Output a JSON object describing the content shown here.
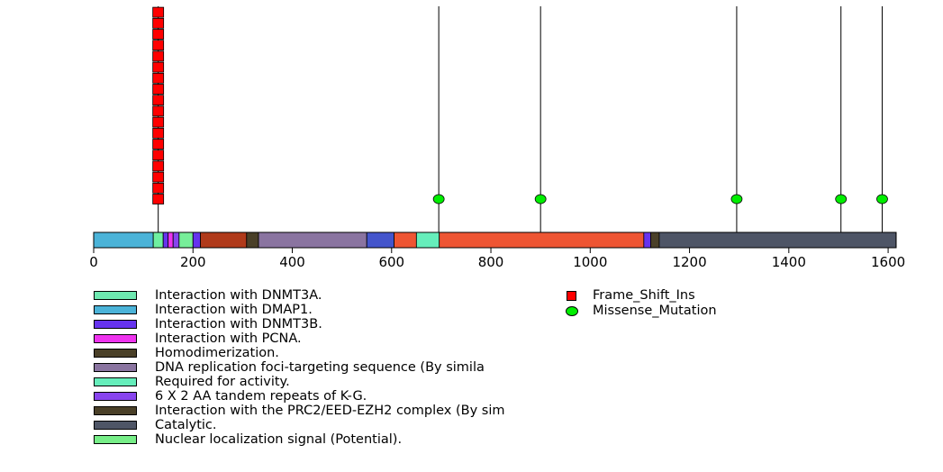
{
  "chart_data": {
    "type": "lollipop",
    "protein_length": 1616,
    "x_ticks": [
      0,
      200,
      400,
      600,
      800,
      1000,
      1200,
      1400,
      1600
    ],
    "regions": [
      {
        "start": 1,
        "end": 120,
        "color": "#4bb3d8",
        "label": "Interaction with DMAP1."
      },
      {
        "start": 121,
        "end": 140,
        "color": "#6ff0a0"
      },
      {
        "start": 141,
        "end": 150,
        "color": "#6633ee"
      },
      {
        "start": 151,
        "end": 160,
        "color": "#ee33ee"
      },
      {
        "start": 161,
        "end": 172,
        "color": "#8844ee"
      },
      {
        "start": 173,
        "end": 200,
        "color": "#77ee99"
      },
      {
        "start": 201,
        "end": 215,
        "color": "#6633ee"
      },
      {
        "start": 216,
        "end": 308,
        "color": "#b03a1a"
      },
      {
        "start": 309,
        "end": 332,
        "color": "#4a4028"
      },
      {
        "start": 333,
        "end": 550,
        "color": "#8a74a0"
      },
      {
        "start": 551,
        "end": 605,
        "color": "#4455cc"
      },
      {
        "start": 606,
        "end": 650,
        "color": "#ee5533"
      },
      {
        "start": 651,
        "end": 696,
        "color": "#66eebb"
      },
      {
        "start": 697,
        "end": 1108,
        "color": "#ee5533"
      },
      {
        "start": 1109,
        "end": 1122,
        "color": "#6633ee"
      },
      {
        "start": 1123,
        "end": 1139,
        "color": "#4a4028"
      },
      {
        "start": 1140,
        "end": 1616,
        "color": "#4e5566"
      }
    ],
    "mutations": [
      {
        "position": 130,
        "type": "Frame_Shift_Ins",
        "count": 18
      },
      {
        "position": 695,
        "type": "Missense_Mutation",
        "count": 1
      },
      {
        "position": 900,
        "type": "Missense_Mutation",
        "count": 1
      },
      {
        "position": 1295,
        "type": "Missense_Mutation",
        "count": 1
      },
      {
        "position": 1505,
        "type": "Missense_Mutation",
        "count": 1
      },
      {
        "position": 1588,
        "type": "Missense_Mutation",
        "count": 1
      }
    ],
    "domain_legend": [
      {
        "label": "Interaction with DNMT3A.",
        "color": "#6ee8b0"
      },
      {
        "label": "Interaction with DMAP1.",
        "color": "#4bb3d8"
      },
      {
        "label": "Interaction with DNMT3B.",
        "color": "#6633ee"
      },
      {
        "label": "Interaction with PCNA.",
        "color": "#ee33ee"
      },
      {
        "label": "Homodimerization.",
        "color": "#4a4028"
      },
      {
        "label": "DNA replication foci-targeting sequence (By simila",
        "color": "#8a74a0"
      },
      {
        "label": "Required for activity.",
        "color": "#66eebb"
      },
      {
        "label": "6 X 2 AA tandem repeats of K-G.",
        "color": "#8844ee"
      },
      {
        "label": "Interaction with the PRC2/EED-EZH2 complex (By sim",
        "color": "#4a4028"
      },
      {
        "label": "Catalytic.",
        "color": "#4e5566"
      },
      {
        "label": "Nuclear localization signal (Potential).",
        "color": "#77ee88"
      }
    ],
    "mutation_legend": [
      {
        "label": "Frame_Shift_Ins",
        "color": "#ff0000",
        "shape": "square"
      },
      {
        "label": "Missense_Mutation",
        "color": "#00ee00",
        "shape": "circle"
      }
    ]
  }
}
